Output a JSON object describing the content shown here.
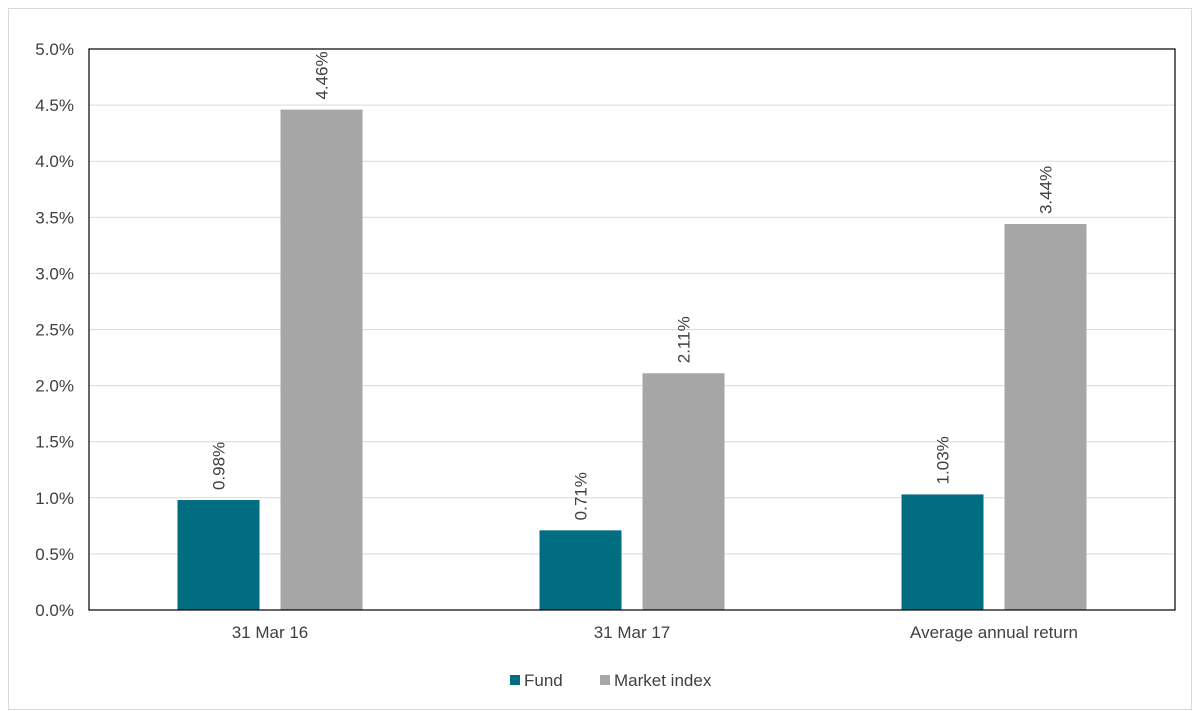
{
  "chart_data": {
    "type": "bar",
    "categories": [
      "31 Mar 16",
      "31 Mar 17",
      "Average annual return"
    ],
    "series": [
      {
        "name": "Fund",
        "color": "#006d80",
        "values": [
          0.98,
          0.71,
          1.03
        ],
        "labels": [
          "0.98%",
          "0.71%",
          "1.03%"
        ]
      },
      {
        "name": "Market index",
        "color": "#a6a6a6",
        "values": [
          4.46,
          2.11,
          3.44
        ],
        "labels": [
          "4.46%",
          "2.11%",
          "3.44%"
        ]
      }
    ],
    "ylim": [
      0,
      5
    ],
    "yticks": [
      0,
      0.5,
      1,
      1.5,
      2,
      2.5,
      3,
      3.5,
      4,
      4.5,
      5
    ],
    "ytick_labels": [
      "0.0%",
      "0.5%",
      "1.0%",
      "1.5%",
      "2.0%",
      "2.5%",
      "3.0%",
      "3.5%",
      "4.0%",
      "4.5%",
      "5.0%"
    ],
    "grid": true,
    "legend_position": "bottom"
  }
}
